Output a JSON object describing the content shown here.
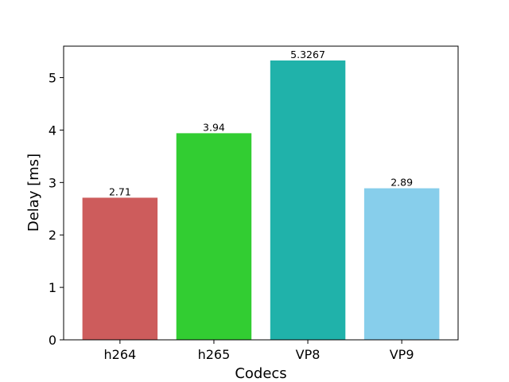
{
  "chart_data": {
    "type": "bar",
    "title": "",
    "xlabel": "Codecs",
    "ylabel": "Delay [ms]",
    "categories": [
      "h264",
      "h265",
      "VP8",
      "VP9"
    ],
    "values": [
      2.71,
      3.94,
      5.3267,
      2.89
    ],
    "value_labels": [
      "2.71",
      "3.94",
      "5.3267",
      "2.89"
    ],
    "colors": [
      "#cd5c5c",
      "#32cd32",
      "#20b2aa",
      "#87ceeb"
    ],
    "ylim": [
      0,
      5.6
    ],
    "yticks": [
      0,
      1,
      2,
      3,
      4,
      5
    ],
    "ytick_labels": [
      "0",
      "1",
      "2",
      "3",
      "4",
      "5"
    ],
    "grid": false,
    "legend": "none"
  }
}
